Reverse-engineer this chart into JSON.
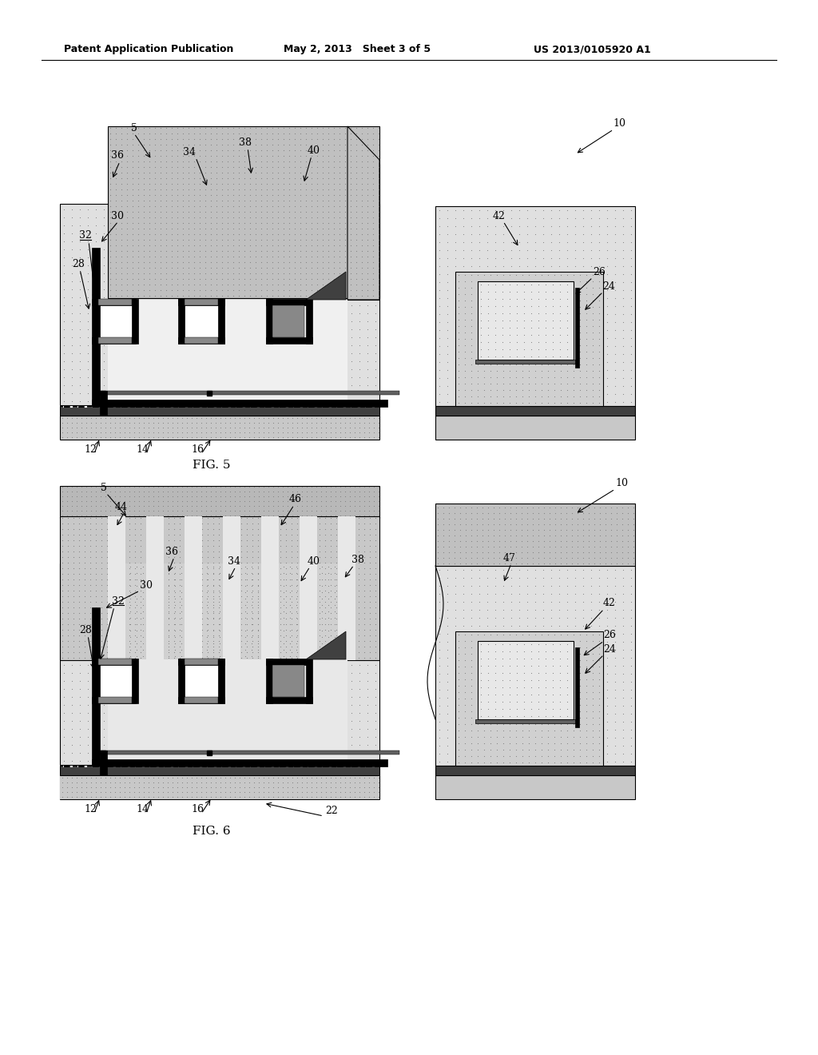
{
  "title_left": "Patent Application Publication",
  "title_mid": "May 2, 2013   Sheet 3 of 5",
  "title_right": "US 2013/0105920 A1",
  "fig5_label": "FIG. 5",
  "fig6_label": "FIG. 6",
  "bg_color": "#ffffff",
  "stipple_light": "#d8d8d8",
  "stipple_med": "#b8b8b8",
  "stipple_dark": "#a0a0a0",
  "black": "#000000",
  "white": "#ffffff",
  "gray_fill": "#c8c8c8",
  "light_fill": "#e8e8e8"
}
